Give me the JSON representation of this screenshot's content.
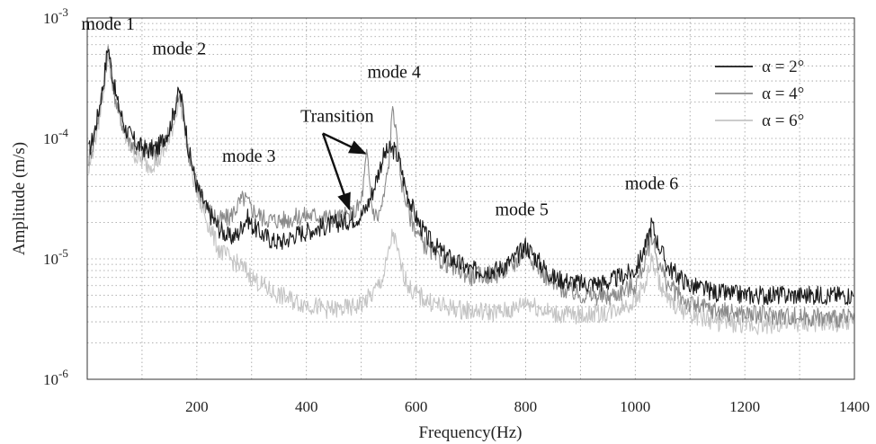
{
  "chart_data": {
    "type": "line",
    "title": "",
    "xlabel": "Frequency(Hz)",
    "ylabel": "Amplitude (m/s)",
    "xlim": [
      0,
      1400
    ],
    "ylim": [
      1e-06,
      0.001
    ],
    "yscale": "log",
    "grid": true,
    "legend_position": "top-right",
    "x_ticks": [
      200,
      400,
      600,
      800,
      1000,
      1200,
      1400
    ],
    "y_ticks": [
      {
        "value": 1e-06,
        "base": "10",
        "exp": "-6"
      },
      {
        "value": 1e-05,
        "base": "10",
        "exp": "-5"
      },
      {
        "value": 0.0001,
        "base": "10",
        "exp": "-4"
      },
      {
        "value": 0.001,
        "base": "10",
        "exp": "-3"
      }
    ],
    "series": [
      {
        "name": "α = 2°",
        "color": "#1a1a1a",
        "x": [
          0,
          10,
          20,
          30,
          38,
          45,
          55,
          70,
          90,
          110,
          130,
          150,
          160,
          168,
          175,
          185,
          200,
          220,
          240,
          260,
          275,
          285,
          292,
          300,
          320,
          340,
          360,
          380,
          400,
          420,
          440,
          460,
          480,
          500,
          510,
          520,
          530,
          540,
          550,
          560,
          570,
          580,
          600,
          620,
          650,
          700,
          750,
          780,
          800,
          820,
          850,
          900,
          950,
          1000,
          1020,
          1030,
          1040,
          1060,
          1100,
          1150,
          1200,
          1300,
          1400
        ],
        "y": [
          7e-05,
          0.0001,
          0.00016,
          0.0003,
          0.0006,
          0.00035,
          0.0002,
          0.00012,
          9e-05,
          8e-05,
          8.5e-05,
          0.00012,
          0.00018,
          0.00025,
          0.00018,
          8e-05,
          4e-05,
          2.5e-05,
          1.8e-05,
          1.5e-05,
          1.6e-05,
          2e-05,
          2.2e-05,
          1.9e-05,
          1.6e-05,
          1.4e-05,
          1.4e-05,
          1.6e-05,
          1.7e-05,
          1.8e-05,
          1.9e-05,
          2e-05,
          2.1e-05,
          2.3e-05,
          2.7e-05,
          3.5e-05,
          5e-05,
          7e-05,
          8e-05,
          8e-05,
          6.5e-05,
          4e-05,
          2.2e-05,
          1.5e-05,
          1.1e-05,
          8e-06,
          8.2e-06,
          1e-05,
          1.3e-05,
          1e-05,
          7e-06,
          6.2e-06,
          6.4e-06,
          8e-06,
          1.3e-05,
          2e-05,
          1.4e-05,
          8.5e-06,
          6e-06,
          5.2e-06,
          5e-06,
          5e-06,
          5e-06
        ]
      },
      {
        "name": "α = 4°",
        "color": "#8a8a8a",
        "x": [
          0,
          10,
          20,
          30,
          38,
          45,
          55,
          70,
          90,
          110,
          130,
          150,
          160,
          168,
          175,
          185,
          200,
          220,
          240,
          260,
          275,
          285,
          292,
          300,
          320,
          340,
          360,
          380,
          400,
          420,
          440,
          460,
          480,
          490,
          500,
          505,
          510,
          515,
          520,
          530,
          540,
          550,
          558,
          565,
          575,
          590,
          610,
          640,
          700,
          750,
          780,
          800,
          820,
          850,
          900,
          950,
          1000,
          1020,
          1030,
          1040,
          1060,
          1100,
          1150,
          1200,
          1300,
          1400
        ],
        "y": [
          6e-05,
          9e-05,
          0.00015,
          0.00028,
          0.00055,
          0.00032,
          0.00018,
          0.00011,
          8e-05,
          7.5e-05,
          8e-05,
          0.00011,
          0.00017,
          0.00026,
          0.00017,
          7.5e-05,
          4e-05,
          2.6e-05,
          2.1e-05,
          2.2e-05,
          2.8e-05,
          3.2e-05,
          3e-05,
          2.6e-05,
          2.2e-05,
          2.1e-05,
          2.1e-05,
          2.2e-05,
          2.3e-05,
          2.3e-05,
          2.2e-05,
          2.2e-05,
          2.3e-05,
          2.5e-05,
          3e-05,
          4.5e-05,
          7.5e-05,
          4.5e-05,
          2.6e-05,
          2.2e-05,
          3e-05,
          6e-05,
          0.0002,
          9e-05,
          4e-05,
          2.2e-05,
          1.4e-05,
          1e-05,
          7.2e-06,
          7.5e-06,
          9e-06,
          1.2e-05,
          9e-06,
          6e-06,
          5e-06,
          4.8e-06,
          6e-06,
          1e-05,
          1.6e-05,
          1e-05,
          6e-06,
          4.2e-06,
          3.7e-06,
          3.5e-06,
          3.3e-06,
          3.2e-06
        ]
      },
      {
        "name": "α = 6°",
        "color": "#c4c4c4",
        "x": [
          0,
          10,
          20,
          30,
          38,
          45,
          55,
          70,
          90,
          110,
          130,
          150,
          160,
          168,
          175,
          185,
          200,
          220,
          240,
          260,
          275,
          290,
          300,
          320,
          340,
          360,
          380,
          400,
          420,
          440,
          460,
          480,
          500,
          520,
          540,
          550,
          558,
          565,
          575,
          590,
          620,
          650,
          700,
          750,
          780,
          800,
          820,
          850,
          900,
          950,
          1000,
          1020,
          1030,
          1040,
          1060,
          1100,
          1150,
          1200,
          1300,
          1400
        ],
        "y": [
          4.5e-05,
          8e-05,
          0.00013,
          0.00026,
          0.0005,
          0.0003,
          0.00017,
          0.0001,
          7e-05,
          6e-05,
          6.5e-05,
          9.5e-05,
          0.00015,
          0.00022,
          0.00015,
          7e-05,
          3.5e-05,
          2e-05,
          1.2e-05,
          1e-05,
          9e-06,
          8e-06,
          7e-06,
          6e-06,
          5.2e-06,
          4.8e-06,
          4.4e-06,
          4.2e-06,
          4e-06,
          3.8e-06,
          3.8e-06,
          3.9e-06,
          4.2e-06,
          5e-06,
          7e-06,
          1.1e-05,
          1.7e-05,
          1.2e-05,
          8e-06,
          5.5e-06,
          4.5e-06,
          4e-06,
          3.7e-06,
          3.6e-06,
          3.8e-06,
          4.5e-06,
          4e-06,
          3.5e-06,
          3.4e-06,
          3.6e-06,
          4.5e-06,
          6.5e-06,
          1e-05,
          7e-06,
          4.5e-06,
          3.5e-06,
          3e-06,
          2.8e-06,
          2.9e-06,
          3e-06
        ]
      }
    ],
    "annotations": [
      {
        "id": "mode-1",
        "text": "mode 1",
        "x": 38,
        "y": 0.0008
      },
      {
        "id": "mode-2",
        "text": "mode 2",
        "x": 168,
        "y": 0.0005
      },
      {
        "id": "mode-3",
        "text": "mode 3",
        "x": 295,
        "y": 6.4e-05
      },
      {
        "id": "mode-4",
        "text": "mode 4",
        "x": 560,
        "y": 0.00032
      },
      {
        "id": "mode-5",
        "text": "mode 5",
        "x": 793,
        "y": 2.3e-05
      },
      {
        "id": "mode-6",
        "text": "mode 6",
        "x": 1030,
        "y": 3.8e-05
      },
      {
        "id": "transition",
        "text": "Transition",
        "x": 456,
        "y": 0.000138
      }
    ],
    "arrows": [
      {
        "from": [
          430,
          0.00011
        ],
        "to": [
          507,
          7.5e-05
        ]
      },
      {
        "from": [
          430,
          0.00011
        ],
        "to": [
          478,
          2.6e-05
        ]
      }
    ]
  }
}
